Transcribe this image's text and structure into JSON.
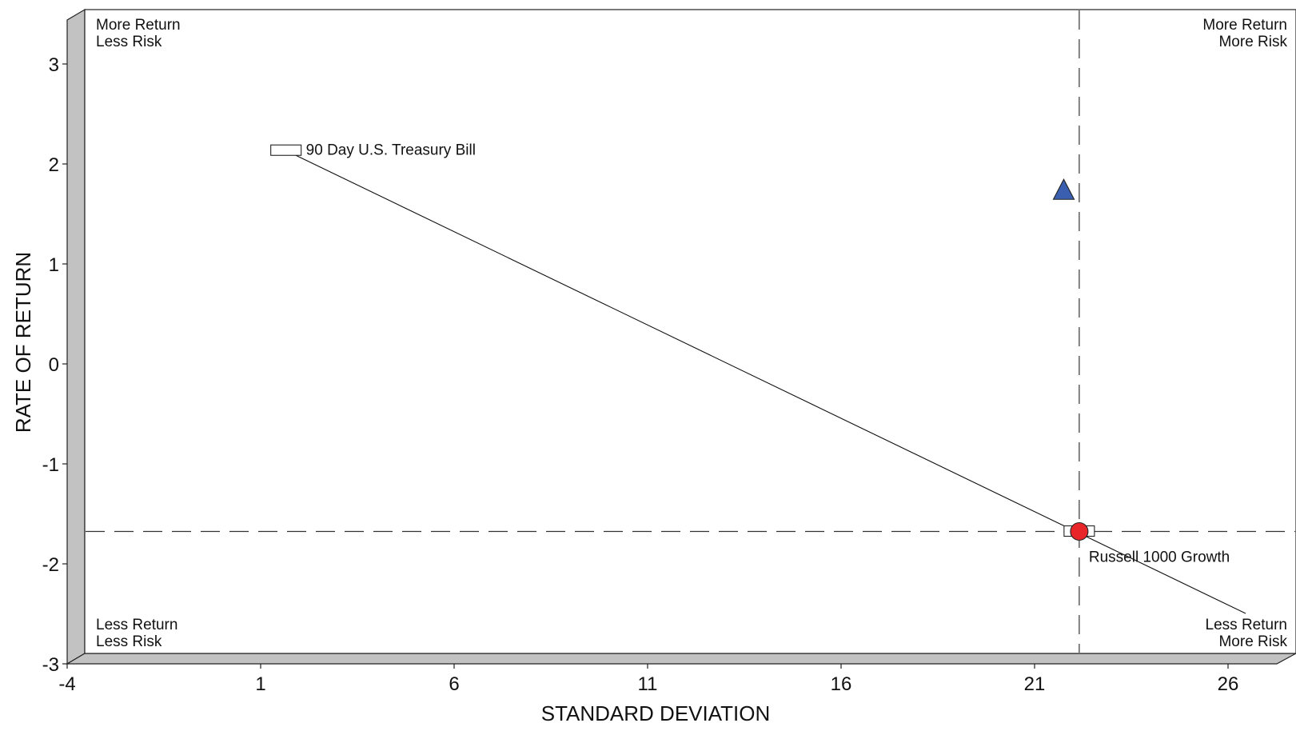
{
  "chart_data": {
    "type": "scatter",
    "xlabel": "STANDARD DEVIATION",
    "ylabel": "RATE OF RETURN",
    "xlim": [
      -4,
      26
    ],
    "ylim": [
      -3,
      3.5
    ],
    "x_ticks": [
      -4,
      1,
      6,
      11,
      16,
      21,
      26
    ],
    "y_ticks": [
      -3,
      -2,
      -1,
      0,
      1,
      2,
      3
    ],
    "grid": false,
    "quadrant_labels": {
      "top_left": [
        "More Return",
        "Less Risk"
      ],
      "top_right": [
        "More Return",
        "More Risk"
      ],
      "bottom_left": [
        "Less Return",
        "Less Risk"
      ],
      "bottom_right": [
        "Less Return",
        "More Risk"
      ]
    },
    "reference_lines": {
      "x": 21.7,
      "y": -1.78
    },
    "points": [
      {
        "label": "90 Day U.S. Treasury Bill",
        "x": 1.2,
        "y": 2.03,
        "marker": "rect",
        "color": "#ffffff"
      },
      {
        "label": "Russell 1000 Growth",
        "x": 21.7,
        "y": -1.78,
        "marker": "rect",
        "color": "#ffffff"
      },
      {
        "label": "",
        "x": 21.7,
        "y": -1.78,
        "marker": "circle",
        "color": "#e8262a"
      },
      {
        "label": "",
        "x": 21.3,
        "y": 1.63,
        "marker": "triangle",
        "color": "#3a5fb0"
      }
    ],
    "capital_market_line": {
      "from": [
        1.2,
        2.03
      ],
      "to": [
        26,
        -2.6
      ]
    }
  }
}
